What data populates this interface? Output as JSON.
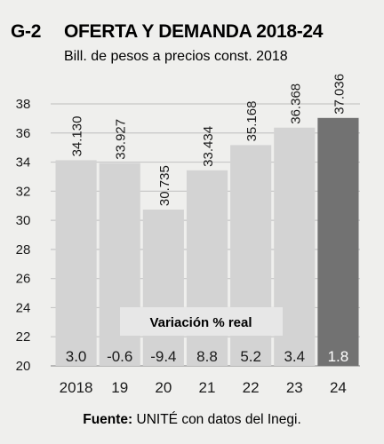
{
  "chart_data": {
    "type": "bar",
    "figure_id": "G-2",
    "title": "OFERTA Y DEMANDA 2018-24",
    "subtitle": "Bill. de pesos a precios const. 2018",
    "categories": [
      "2018",
      "19",
      "20",
      "21",
      "22",
      "23",
      "24"
    ],
    "values": [
      34.13,
      33.927,
      30.735,
      33.434,
      35.168,
      36.368,
      37.036
    ],
    "value_labels": [
      "34.130",
      "33.927",
      "30.735",
      "33.434",
      "35.168",
      "36.368",
      "37.036"
    ],
    "variation_title": "Variación % real",
    "variation_values": [
      "3.0",
      "-0.6",
      "-9.4",
      "8.8",
      "5.2",
      "3.4",
      "1.8"
    ],
    "ylim": [
      20,
      38
    ],
    "yticks": [
      20,
      22,
      24,
      26,
      28,
      30,
      32,
      34,
      36,
      38
    ],
    "xlabel": "",
    "ylabel": "",
    "grid": true,
    "highlight_index": 6,
    "colors": {
      "bar": "#d3d3d3",
      "bar_highlight": "#727272",
      "grid": "#c6c6c6",
      "background": "#efefed",
      "banner": "#e7e7e7",
      "text": "#1a1a1a"
    },
    "source_label": "Fuente:",
    "source_text": " UNITÉ con datos del Inegi."
  }
}
